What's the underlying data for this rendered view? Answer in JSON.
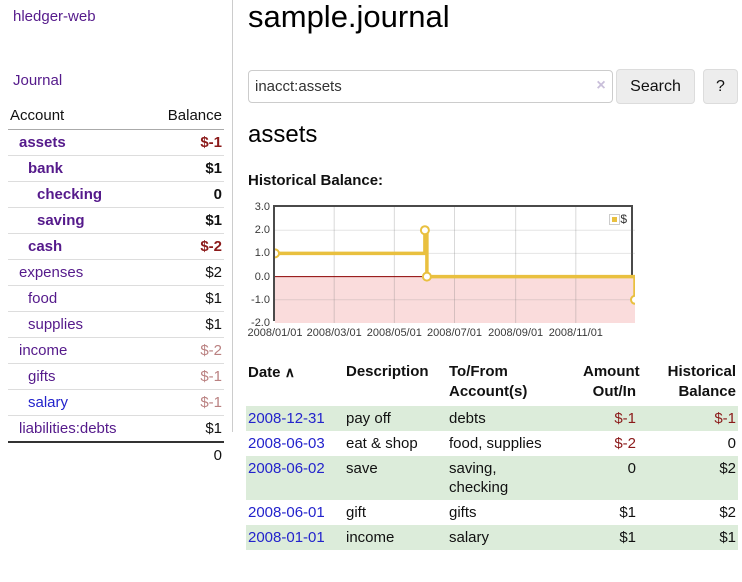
{
  "colors": {
    "purple": "#551A8B",
    "link-blue": "#2323CC",
    "neg-dark": "#8B1A1A",
    "neg-muted": "#BA8181",
    "row-green": "#DCECDA",
    "gold": "#E9C03F",
    "pink-fill": "#FADCDC",
    "zero-red": "#8B0000",
    "chart-border": "#4A4A4A",
    "button-bg": "#EDEDED"
  },
  "app": {
    "title": "hledger-web"
  },
  "sidebar": {
    "journal_link": "Journal",
    "accounts": {
      "header": {
        "account": "Account",
        "balance": "Balance"
      },
      "rows": [
        {
          "name": "assets",
          "balance": "$-1",
          "depth": 1,
          "bold": true,
          "balance_style": "neg"
        },
        {
          "name": "bank",
          "balance": "$1",
          "depth": 2,
          "bold": true,
          "balance_style": "pos"
        },
        {
          "name": "checking",
          "balance": "0",
          "depth": 3,
          "bold": true,
          "balance_style": "pos"
        },
        {
          "name": "saving",
          "balance": "$1",
          "depth": 3,
          "bold": true,
          "balance_style": "pos"
        },
        {
          "name": "cash",
          "balance": "$-2",
          "depth": 2,
          "bold": true,
          "balance_style": "neg"
        },
        {
          "name": "expenses",
          "balance": "$2",
          "depth": 1,
          "bold": false,
          "balance_style": "pos"
        },
        {
          "name": "food",
          "balance": "$1",
          "depth": 2,
          "bold": false,
          "balance_style": "pos"
        },
        {
          "name": "supplies",
          "balance": "$1",
          "depth": 2,
          "bold": false,
          "balance_style": "pos"
        },
        {
          "name": "income",
          "balance": "$-2",
          "depth": 1,
          "bold": false,
          "balance_style": "neg-muted"
        },
        {
          "name": "gifts",
          "balance": "$-1",
          "depth": 2,
          "bold": false,
          "balance_style": "neg-muted"
        },
        {
          "name": "salary",
          "balance": "$-1",
          "depth": 2,
          "bold": false,
          "balance_style": "neg-muted",
          "link_color": "blue"
        },
        {
          "name": "liabilities:debts",
          "balance": "$1",
          "depth": 1,
          "bold": false,
          "balance_style": "pos"
        }
      ],
      "total": "0"
    }
  },
  "main": {
    "title": "sample.journal",
    "search": {
      "value": "inacct:assets",
      "clear_icon": "×",
      "search_button": "Search",
      "help_button": "?"
    },
    "account_heading": "assets",
    "chart_label": "Historical Balance:",
    "register": {
      "headers": {
        "date": "Date",
        "sort_arrow": "∧",
        "description": "Description",
        "accounts": "To/From\nAccount(s)",
        "amount": "Amount\nOut/In",
        "balance": "Historical\nBalance"
      },
      "rows": [
        {
          "date": "2008-12-31",
          "description": "pay off",
          "accounts": "debts",
          "amount": "$-1",
          "balance": "$-1",
          "amount_neg": true,
          "balance_neg": true
        },
        {
          "date": "2008-06-03",
          "description": "eat & shop",
          "accounts": "food, supplies",
          "amount": "$-2",
          "balance": "0",
          "amount_neg": true,
          "balance_neg": false
        },
        {
          "date": "2008-06-02",
          "description": "save",
          "accounts": "saving,\nchecking",
          "amount": "0",
          "balance": "$2",
          "amount_neg": false,
          "balance_neg": false
        },
        {
          "date": "2008-06-01",
          "description": "gift",
          "accounts": "gifts",
          "amount": "$1",
          "balance": "$2",
          "amount_neg": false,
          "balance_neg": false
        },
        {
          "date": "2008-01-01",
          "description": "income",
          "accounts": "salary",
          "amount": "$1",
          "balance": "$1",
          "amount_neg": false,
          "balance_neg": false
        }
      ]
    }
  },
  "chart_data": {
    "type": "line",
    "step": true,
    "title": "Historical Balance",
    "legend": [
      {
        "name": "$",
        "color": "#E9C03F"
      }
    ],
    "legend_position": "top-right",
    "grid": true,
    "negative_region_shaded": true,
    "xlim": [
      "2008-01-01",
      "2008-12-31"
    ],
    "ylim": [
      -2,
      3
    ],
    "y_ticks": [
      {
        "value": 3,
        "label": "3.0"
      },
      {
        "value": 2,
        "label": "2.0"
      },
      {
        "value": 1,
        "label": "1.0"
      },
      {
        "value": 0,
        "label": "0.0"
      },
      {
        "value": -1,
        "label": "-1.0"
      },
      {
        "value": -2,
        "label": "-2.0"
      }
    ],
    "x_ticks": [
      {
        "date": "2008-01-01",
        "label": "2008/01/01"
      },
      {
        "date": "2008-03-01",
        "label": "2008/03/01"
      },
      {
        "date": "2008-05-01",
        "label": "2008/05/01"
      },
      {
        "date": "2008-07-01",
        "label": "2008/07/01"
      },
      {
        "date": "2008-09-01",
        "label": "2008/09/01"
      },
      {
        "date": "2008-11-01",
        "label": "2008/11/01"
      }
    ],
    "series": [
      {
        "name": "$",
        "color": "#E9C03F",
        "points": [
          [
            "2008-01-01",
            1
          ],
          [
            "2008-06-01",
            2
          ],
          [
            "2008-06-03",
            0
          ],
          [
            "2008-12-31",
            -1
          ]
        ]
      }
    ]
  }
}
